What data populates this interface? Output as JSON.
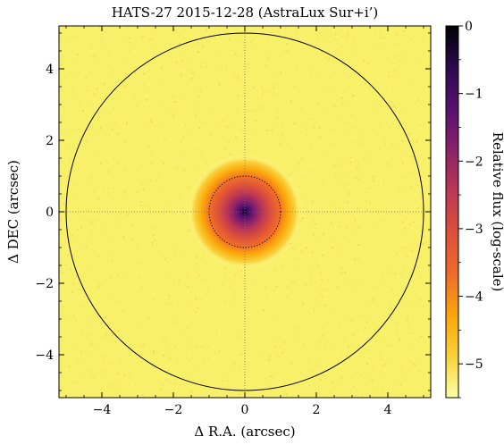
{
  "chart_data": {
    "type": "heatmap",
    "title": "HATS-27 2015-12-28 (AstraLux Sur+i’)",
    "xlabel": "Δ R.A. (arcsec)",
    "ylabel": "Δ DEC (arcsec)",
    "xlim": [
      -5.2,
      5.2
    ],
    "ylim": [
      -5.2,
      5.2
    ],
    "x_ticks": [
      -4,
      -2,
      0,
      2,
      4
    ],
    "y_ticks": [
      -4,
      -2,
      0,
      2,
      4
    ],
    "x_tick_labels": [
      "−4",
      "−2",
      "0",
      "2",
      "4"
    ],
    "y_tick_labels": [
      "−4",
      "−2",
      "0",
      "2",
      "4"
    ],
    "colorbar": {
      "label": "Relative flux (log-scale)",
      "range": [
        -5.5,
        0
      ],
      "ticks": [
        0,
        -1,
        -2,
        -3,
        -4,
        -5
      ],
      "tick_labels": [
        "0",
        "−1",
        "−2",
        "−3",
        "−4",
        "−5"
      ],
      "colormap": "inferno",
      "stops": [
        "#fcffa4",
        "#f9d13a",
        "#fca50a",
        "#ef6b2a",
        "#dd513a",
        "#bc3754",
        "#8a226a",
        "#57106e",
        "#2c0a4e",
        "#000004"
      ]
    },
    "circles": [
      {
        "center": [
          0,
          0
        ],
        "radius": 5.0,
        "style": "solid"
      },
      {
        "center": [
          0,
          0
        ],
        "radius": 1.0,
        "style": "dotted"
      }
    ],
    "crosshair": {
      "x": 0,
      "y": 0,
      "style": "dotted"
    },
    "source": {
      "center": [
        0,
        0
      ],
      "fwhm_core_arcsec": 0.35,
      "halo_radius_arcsec": 1.6
    }
  }
}
